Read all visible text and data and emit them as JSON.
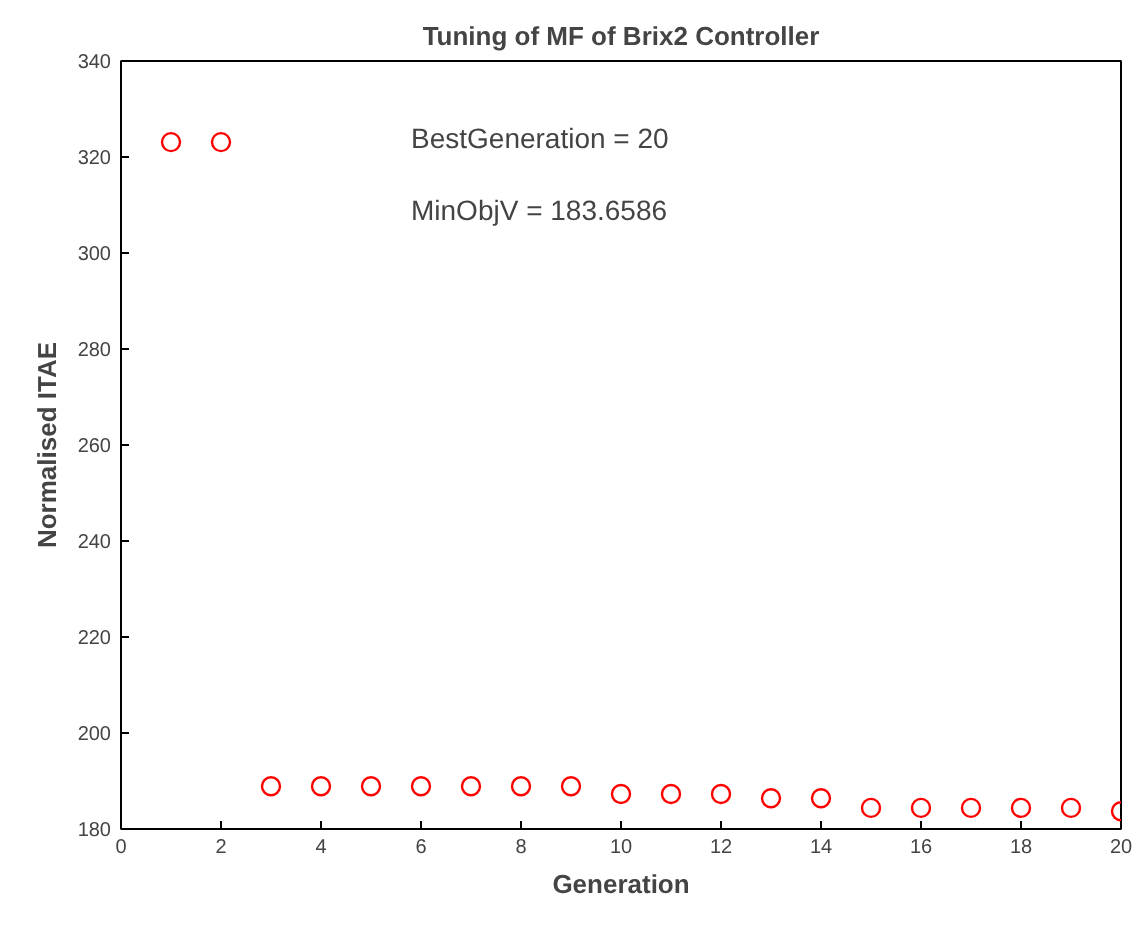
{
  "chart_data": {
    "type": "scatter",
    "title": "Tuning of MF of Brix2 Controller",
    "xlabel": "Generation",
    "ylabel": "Normalised ITAE",
    "x": [
      1,
      2,
      3,
      4,
      5,
      6,
      7,
      8,
      9,
      10,
      11,
      12,
      13,
      14,
      15,
      16,
      17,
      18,
      19,
      20
    ],
    "series": [
      {
        "color": "#ff0000",
        "values": [
          323.1,
          323.1,
          188.9,
          188.9,
          188.9,
          188.9,
          188.9,
          188.9,
          188.9,
          187.3,
          187.3,
          187.3,
          186.4,
          186.4,
          184.4,
          184.4,
          184.4,
          184.4,
          184.4,
          183.7
        ]
      }
    ],
    "marker": "circle",
    "xlim": [
      0,
      20
    ],
    "xticks": [
      0,
      2,
      4,
      6,
      8,
      10,
      12,
      14,
      16,
      18,
      20
    ],
    "ylim": [
      180,
      340
    ],
    "yticks": [
      180,
      200,
      220,
      240,
      260,
      280,
      300,
      320,
      340
    ],
    "grid": false,
    "annotations": [
      "BestGeneration = 20",
      "MinObjV = 183.6586"
    ]
  }
}
